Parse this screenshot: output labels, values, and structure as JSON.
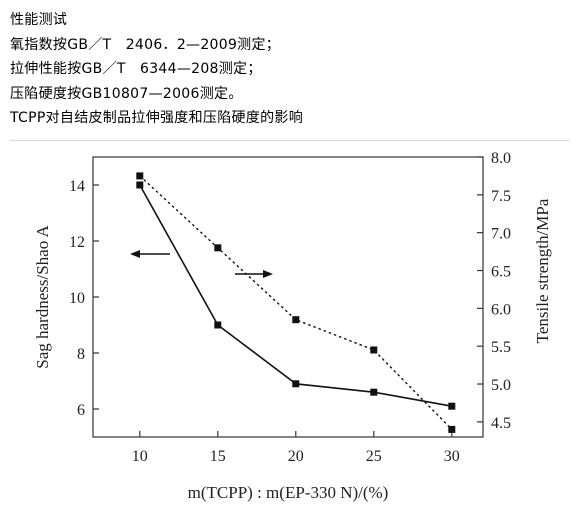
{
  "document": {
    "lines": [
      "性能测试",
      "氧指数按GB／T　2406．2—2009测定；",
      "拉伸性能按GB／T　6344—208测定；",
      "压陷硬度按GB10807—2006测定。",
      "TCPP对自结皮制品拉伸强度和压陷硬度的影响"
    ]
  },
  "chart_data": {
    "type": "line",
    "title": "",
    "xlabel": "m(TCPP) : m(EP-330 N)/(%)",
    "ylabel": "Sag hardness/Shao A",
    "y2label": "Tensile strength/MPa",
    "x": [
      10,
      15,
      20,
      25,
      30
    ],
    "xlim": [
      7,
      32
    ],
    "ylim": [
      5,
      15
    ],
    "y2lim": [
      4.3,
      8.0
    ],
    "xticks": [
      "10",
      "15",
      "20",
      "25",
      "30"
    ],
    "yticks": [
      "6",
      "8",
      "10",
      "12",
      "14"
    ],
    "y2ticks": [
      "4.5",
      "5.0",
      "5.5",
      "6.0",
      "6.5",
      "7.0",
      "7.5",
      "8.0"
    ],
    "series": [
      {
        "values": [
          14.0,
          9.0,
          6.9,
          6.6,
          6.1
        ],
        "axis": "left",
        "style": "solid"
      },
      {
        "values": [
          7.75,
          6.8,
          5.85,
          5.45,
          4.4
        ],
        "axis": "right",
        "style": "dotted"
      }
    ],
    "annotations": [
      "arrow-left",
      "arrow-right"
    ],
    "grid": false,
    "legend": "none"
  }
}
